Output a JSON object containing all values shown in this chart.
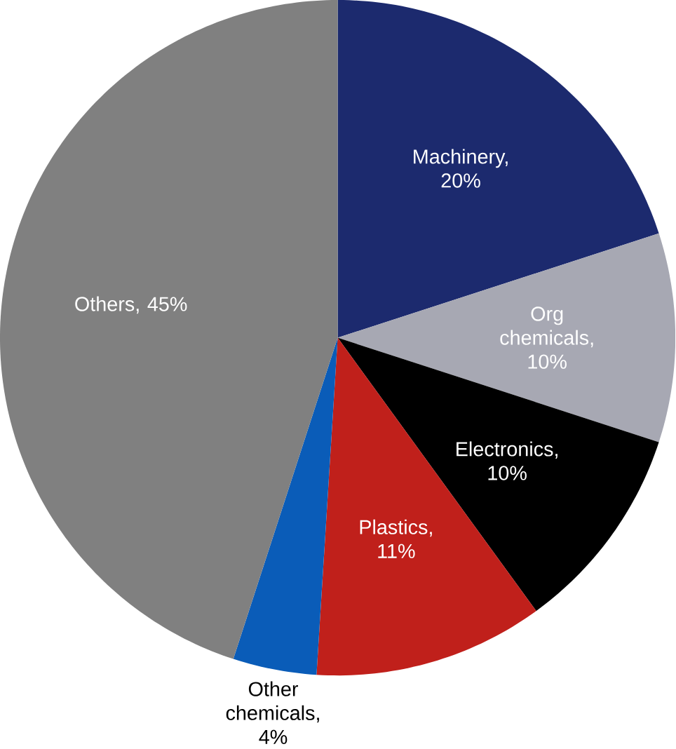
{
  "chart_data": {
    "type": "pie",
    "categories": [
      null,
      null,
      null,
      null,
      null,
      null
    ],
    "values": [
      20,
      10,
      10,
      11,
      4,
      45
    ],
    "colors": [
      "#1c2a6e",
      "#a7a8b3",
      "#000000",
      "#c0201b",
      "#0a5cb8",
      "#808080"
    ],
    "value_labels": [
      "Machinery, 20%",
      "Org chemicals, 10%",
      "Electronics, 10%",
      "Plastics, 11%",
      "Other chemicals, 4%",
      "Others, 45%"
    ]
  }
}
